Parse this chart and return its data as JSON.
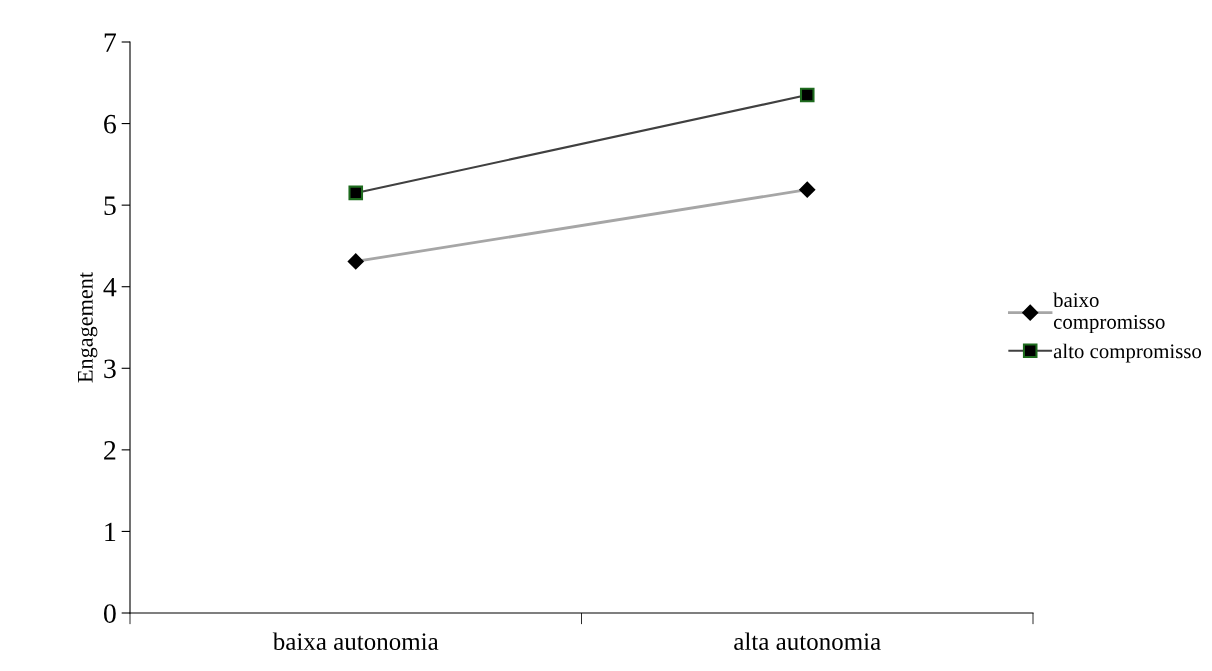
{
  "chart_data": {
    "type": "line",
    "ylabel": "Engagement",
    "categories": [
      "baixa autonomia",
      "alta autonomia"
    ],
    "series": [
      {
        "name": "baixo\ncompromisso",
        "color": "#a6a6a6",
        "values": [
          4.31,
          5.19
        ],
        "marker": "diamond"
      },
      {
        "name": "alto compromisso",
        "color": "#404040",
        "values": [
          5.15,
          6.35
        ],
        "marker": "square"
      }
    ],
    "ylim": [
      0,
      7
    ],
    "yticks": [
      0,
      1,
      2,
      3,
      4,
      5,
      6,
      7
    ],
    "grid": false,
    "legend": "right",
    "line_style": "solid"
  }
}
